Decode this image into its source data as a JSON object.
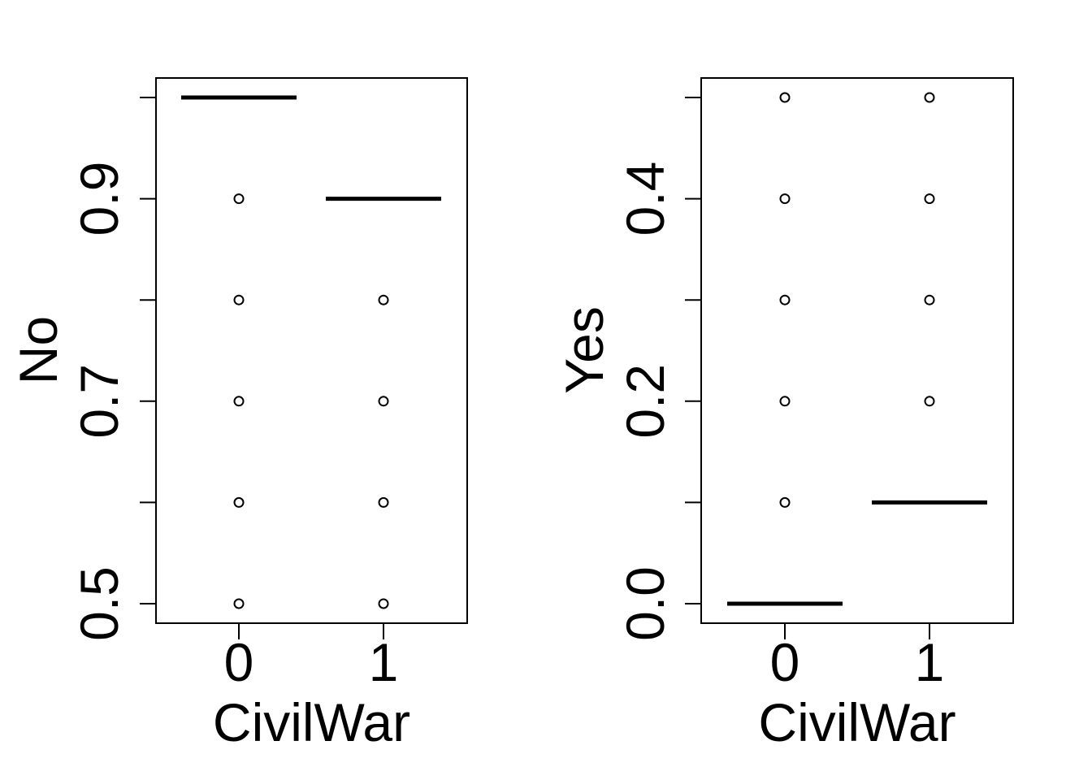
{
  "chart_data": [
    {
      "type": "boxplot",
      "title": "",
      "xlabel": "CivilWar",
      "ylabel": "No",
      "categories": [
        "0",
        "1"
      ],
      "ylim": [
        0.5,
        1.0
      ],
      "yticks": [
        0.5,
        0.7,
        0.9
      ],
      "median_lines": [
        {
          "category": "0",
          "value": 1.0
        },
        {
          "category": "1",
          "value": 0.9
        }
      ],
      "outliers": [
        {
          "category": "0",
          "values": [
            0.5,
            0.6,
            0.7,
            0.8,
            0.9
          ]
        },
        {
          "category": "1",
          "values": [
            0.5,
            0.6,
            0.7,
            0.8
          ]
        }
      ]
    },
    {
      "type": "boxplot",
      "title": "",
      "xlabel": "CivilWar",
      "ylabel": "Yes",
      "categories": [
        "0",
        "1"
      ],
      "ylim": [
        0.0,
        0.5
      ],
      "yticks": [
        0.0,
        0.2,
        0.4
      ],
      "median_lines": [
        {
          "category": "0",
          "value": 0.0
        },
        {
          "category": "1",
          "value": 0.1
        }
      ],
      "outliers": [
        {
          "category": "0",
          "values": [
            0.1,
            0.2,
            0.3,
            0.4,
            0.5
          ]
        },
        {
          "category": "1",
          "values": [
            0.2,
            0.3,
            0.4,
            0.5
          ]
        }
      ]
    }
  ]
}
